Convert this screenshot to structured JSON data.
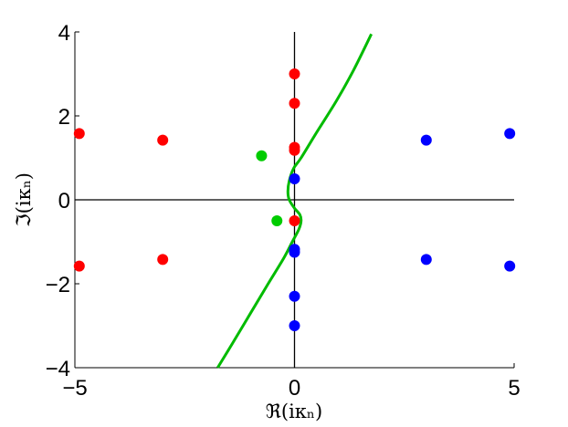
{
  "chart_data": {
    "type": "scatter",
    "title": "",
    "xlabel": "ℜ(iκₙ)",
    "ylabel": "ℑ(iκₙ)",
    "xlim": [
      -5,
      5
    ],
    "ylim": [
      -4,
      4
    ],
    "x_ticks": [
      -5,
      0,
      5
    ],
    "y_ticks": [
      -4,
      -2,
      0,
      2,
      4
    ],
    "x_tick_labels": [
      "−5",
      "0",
      "5"
    ],
    "y_tick_labels": [
      "−4",
      "−2",
      "0",
      "2",
      "4"
    ],
    "grid": false,
    "legend": "none",
    "reference_lines": [
      {
        "orientation": "horizontal",
        "value": 0,
        "color": "#000000"
      },
      {
        "orientation": "vertical",
        "value": 0,
        "color": "#000000"
      }
    ],
    "series": [
      {
        "color": "#ff0000",
        "points": [
          {
            "x": -4.9,
            "y": 1.58
          },
          {
            "x": -4.9,
            "y": -1.58
          },
          {
            "x": -3.0,
            "y": 1.42
          },
          {
            "x": -3.0,
            "y": -1.42
          },
          {
            "x": 0.0,
            "y": 3.0
          },
          {
            "x": 0.0,
            "y": 2.3
          },
          {
            "x": 0.0,
            "y": 1.25
          },
          {
            "x": 0.0,
            "y": 1.18
          },
          {
            "x": 0.0,
            "y": -0.5
          }
        ]
      },
      {
        "color": "#0000ff",
        "points": [
          {
            "x": 4.9,
            "y": 1.58
          },
          {
            "x": 4.9,
            "y": -1.58
          },
          {
            "x": 3.0,
            "y": 1.42
          },
          {
            "x": 3.0,
            "y": -1.42
          },
          {
            "x": 0.0,
            "y": 0.5
          },
          {
            "x": 0.0,
            "y": -1.18
          },
          {
            "x": 0.0,
            "y": -1.25
          },
          {
            "x": 0.0,
            "y": -2.3
          },
          {
            "x": 0.0,
            "y": -3.0
          }
        ]
      },
      {
        "color": "#00cc00",
        "points": [
          {
            "x": -0.75,
            "y": 1.05
          },
          {
            "x": -0.4,
            "y": -0.5
          }
        ]
      }
    ],
    "curve": {
      "color": "#00bb00",
      "points": [
        [
          -1.75,
          -4.0
        ],
        [
          -1.4,
          -3.4
        ],
        [
          -1.0,
          -2.7
        ],
        [
          -0.6,
          -2.0
        ],
        [
          -0.25,
          -1.4
        ],
        [
          -0.05,
          -1.0
        ],
        [
          0.1,
          -0.7
        ],
        [
          0.15,
          -0.5
        ],
        [
          0.12,
          -0.35
        ],
        [
          0.0,
          -0.2
        ],
        [
          -0.12,
          0.0
        ],
        [
          -0.15,
          0.2
        ],
        [
          -0.12,
          0.45
        ],
        [
          -0.02,
          0.75
        ],
        [
          0.15,
          1.0
        ],
        [
          0.5,
          1.6
        ],
        [
          0.95,
          2.35
        ],
        [
          1.35,
          3.1
        ],
        [
          1.75,
          3.95
        ]
      ]
    }
  }
}
